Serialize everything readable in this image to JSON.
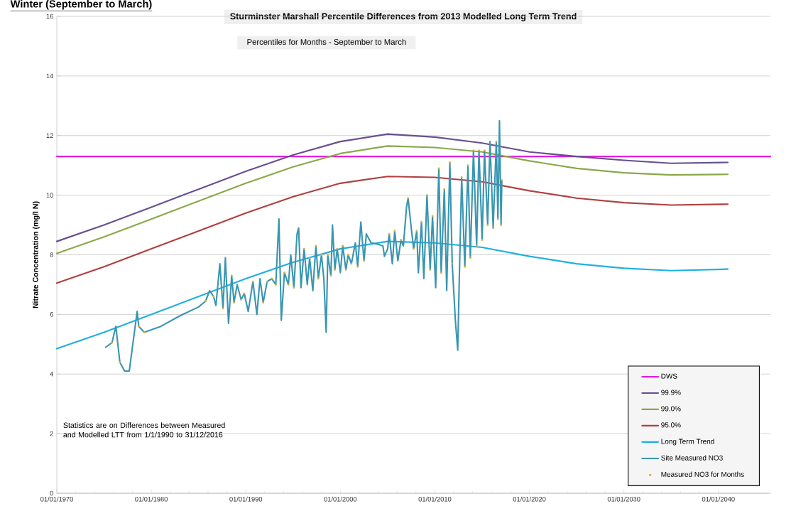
{
  "chart_data": {
    "type": "line",
    "title": "Sturminster Marshall      Percentile Differences from 2013 Modelled Long Term Trend",
    "subtitle": "Percentiles for Months   -   September to March",
    "ylabel": "Nitrate Concentration (mg/l N)",
    "annotations": [
      "Winter (September to March)",
      "Statistics are on Differences between Measured and Modelled LTT from 1/1/1990 to 31/12/2016"
    ],
    "xlim": [
      "1970-01-01",
      "2045-07-01"
    ],
    "ylim": [
      0,
      16
    ],
    "xticks": [
      {
        "value": "1970-01-01",
        "label": "01/01/1970"
      },
      {
        "value": "1980-01-01",
        "label": "01/01/1980"
      },
      {
        "value": "1990-01-01",
        "label": "01/01/1990"
      },
      {
        "value": "2000-01-01",
        "label": "01/01/2000"
      },
      {
        "value": "2010-01-01",
        "label": "01/01/2010"
      },
      {
        "value": "2020-01-01",
        "label": "01/01/2020"
      },
      {
        "value": "2030-01-01",
        "label": "01/01/2030"
      },
      {
        "value": "2040-01-01",
        "label": "01/01/2040"
      }
    ],
    "yticks": [
      0,
      2,
      4,
      6,
      8,
      10,
      12,
      14,
      16
    ],
    "grid": "y",
    "legend": "bottom right",
    "series": [
      {
        "name": "DWS",
        "color": "#e020e0",
        "x": [
          "1970",
          "2045-07"
        ],
        "values": [
          11.3,
          11.3
        ]
      },
      {
        "name": "99.9%",
        "color": "#6a4f8f",
        "x": [
          "1970",
          "1975",
          "1980",
          "1985",
          "1990",
          "1995",
          "2000",
          "2005",
          "2010",
          "2015",
          "2020",
          "2025",
          "2030",
          "2035",
          "2041"
        ],
        "values": [
          8.45,
          9.0,
          9.6,
          10.2,
          10.8,
          11.35,
          11.8,
          12.05,
          11.95,
          11.75,
          11.45,
          11.3,
          11.17,
          11.07,
          11.1
        ]
      },
      {
        "name": "99.0%",
        "color": "#8aa84a",
        "x": [
          "1970",
          "1975",
          "1980",
          "1985",
          "1990",
          "1995",
          "2000",
          "2005",
          "2010",
          "2015",
          "2020",
          "2025",
          "2030",
          "2035",
          "2041"
        ],
        "values": [
          8.05,
          8.6,
          9.2,
          9.8,
          10.4,
          10.95,
          11.4,
          11.65,
          11.6,
          11.45,
          11.15,
          10.9,
          10.75,
          10.68,
          10.7
        ]
      },
      {
        "name": "95.0%",
        "color": "#b04040",
        "x": [
          "1970",
          "1975",
          "1980",
          "1985",
          "1990",
          "1995",
          "2000",
          "2005",
          "2010",
          "2015",
          "2020",
          "2025",
          "2030",
          "2035",
          "2041"
        ],
        "values": [
          7.05,
          7.6,
          8.2,
          8.8,
          9.4,
          9.95,
          10.4,
          10.63,
          10.6,
          10.45,
          10.15,
          9.9,
          9.75,
          9.67,
          9.7
        ]
      },
      {
        "name": "Long Term Trend",
        "color": "#1fb0e0",
        "x": [
          "1970",
          "1975",
          "1980",
          "1985",
          "1990",
          "1995",
          "2000",
          "2005",
          "2010",
          "2015",
          "2020",
          "2025",
          "2030",
          "2035",
          "2041"
        ],
        "values": [
          4.85,
          5.4,
          6.0,
          6.6,
          7.2,
          7.75,
          8.2,
          8.45,
          8.4,
          8.25,
          7.95,
          7.7,
          7.55,
          7.47,
          7.52
        ]
      },
      {
        "name": "Site Measured NO3",
        "color": "#3a96b0",
        "x": [
          "1975-03",
          "1975-11",
          "1976-04",
          "1976-09",
          "1977-03",
          "1977-09",
          "1978-03",
          "1978-07",
          "1978-09",
          "1979-04",
          "1981-01",
          "1983-01",
          "1985-01",
          "1985-10",
          "1986-03",
          "1986-08",
          "1986-11",
          "1987-04",
          "1987-08",
          "1987-11",
          "1988-03",
          "1988-07",
          "1988-10",
          "1989-02",
          "1989-07",
          "1989-11",
          "1990-04",
          "1990-10",
          "1991-03",
          "1991-07",
          "1991-11",
          "1992-04",
          "1992-10",
          "1993-03",
          "1993-07",
          "1993-10",
          "1994-02",
          "1994-07",
          "1994-10",
          "1995-02",
          "1995-06",
          "1995-08",
          "1995-11",
          "1996-03",
          "1996-07",
          "1996-10",
          "1997-02",
          "1997-06",
          "1997-09",
          "1998-01",
          "1998-04",
          "1998-07",
          "1998-09",
          "1999-01",
          "1999-03",
          "1999-06",
          "1999-09",
          "2000-01",
          "2000-04",
          "2000-08",
          "2000-11",
          "2001-03",
          "2001-08",
          "2001-11",
          "2002-03",
          "2002-07",
          "2002-10",
          "2003-04",
          "2004-01",
          "2004-07",
          "2004-09",
          "2005-01",
          "2005-03",
          "2005-07",
          "2005-10",
          "2006-02",
          "2006-06",
          "2006-09",
          "2007-01",
          "2007-03",
          "2007-07",
          "2007-10",
          "2008-02",
          "2008-04",
          "2008-08",
          "2008-11",
          "2009-03",
          "2009-07",
          "2009-10",
          "2010-02",
          "2010-06",
          "2010-09",
          "2011-01",
          "2011-04",
          "2011-08",
          "2011-11",
          "2012-03",
          "2012-06",
          "2012-08",
          "2012-11",
          "2013-03",
          "2013-07",
          "2013-10",
          "2014-02",
          "2014-06",
          "2014-09",
          "2015-01",
          "2015-04",
          "2015-08",
          "2015-11",
          "2016-03",
          "2016-07",
          "2016-09",
          "2016-11",
          "2017-01",
          "2017-02"
        ],
        "values": [
          4.9,
          5.05,
          5.6,
          4.4,
          4.1,
          4.1,
          5.3,
          6.1,
          5.6,
          5.4,
          5.6,
          5.95,
          6.25,
          6.45,
          6.8,
          6.6,
          6.3,
          7.7,
          6.2,
          7.9,
          5.7,
          7.3,
          6.4,
          7.0,
          6.5,
          6.7,
          6.1,
          7.1,
          6.0,
          7.2,
          6.4,
          7.1,
          7.2,
          7.0,
          9.2,
          5.8,
          7.4,
          7.0,
          8.0,
          6.9,
          8.7,
          8.9,
          6.9,
          8.2,
          7.0,
          7.9,
          6.8,
          8.3,
          7.2,
          8.0,
          7.2,
          5.4,
          8.0,
          7.3,
          9.0,
          7.5,
          8.2,
          7.4,
          8.3,
          7.5,
          8.0,
          7.7,
          8.4,
          7.6,
          9.1,
          7.8,
          8.7,
          8.4,
          8.35,
          8.3,
          7.95,
          8.2,
          8.7,
          7.7,
          8.8,
          7.8,
          8.5,
          8.3,
          9.6,
          9.9,
          8.9,
          8.2,
          8.8,
          7.4,
          9.1,
          7.2,
          10.0,
          7.5,
          9.3,
          6.9,
          10.9,
          7.4,
          10.2,
          6.8,
          11.1,
          7.7,
          5.8,
          4.8,
          7.2,
          10.6,
          7.6,
          11.0,
          7.9,
          11.5,
          8.3,
          11.5,
          8.5,
          11.5,
          9.0,
          11.8,
          8.9,
          11.8,
          9.2,
          12.5,
          9.0,
          10.5
        ]
      },
      {
        "name": "Measured NO3 for Months",
        "type": "scatter",
        "marker": "circle",
        "color": "#e0b040",
        "x": [
          "1975-11",
          "1976-09",
          "1978-09",
          "1979-04",
          "1985-10",
          "1986-08",
          "1987-08",
          "1988-07",
          "1988-10",
          "1989-07",
          "1989-11",
          "1990-10",
          "1991-11",
          "1992-04",
          "1992-10",
          "1993-03",
          "1994-02",
          "1994-07",
          "1995-02",
          "1996-03",
          "1996-10",
          "1997-06",
          "1997-09",
          "1998-01",
          "1998-09",
          "1999-01",
          "1999-06",
          "1999-09",
          "2000-04",
          "2000-08",
          "2000-11",
          "2001-03",
          "2001-11",
          "2002-07",
          "2005-03",
          "2005-10",
          "2006-06",
          "2007-03",
          "2007-10",
          "2008-02",
          "2008-08",
          "2009-03",
          "2009-07",
          "2009-10",
          "2010-06",
          "2010-09",
          "2011-01",
          "2011-08",
          "2011-11",
          "2012-11",
          "2013-03",
          "2013-07",
          "2013-10",
          "2014-02",
          "2014-06",
          "2014-09",
          "2015-01",
          "2015-04",
          "2015-08",
          "2016-03",
          "2016-07",
          "2016-09",
          "2017-01",
          "2017-02"
        ],
        "values": [
          5.05,
          4.4,
          5.6,
          5.4,
          6.45,
          6.6,
          6.2,
          7.3,
          6.4,
          6.5,
          6.7,
          7.1,
          6.4,
          7.1,
          7.2,
          7.0,
          7.4,
          7.0,
          6.9,
          8.2,
          7.9,
          8.3,
          7.2,
          8.0,
          8.0,
          7.3,
          7.5,
          8.2,
          8.3,
          7.5,
          8.0,
          7.7,
          7.6,
          7.8,
          8.7,
          8.8,
          8.5,
          9.9,
          8.2,
          8.8,
          9.1,
          10.0,
          7.5,
          9.3,
          10.9,
          7.4,
          10.2,
          11.1,
          7.7,
          10.6,
          7.6,
          11.0,
          7.9,
          11.5,
          8.3,
          11.5,
          8.5,
          11.5,
          9.0,
          8.9,
          11.8,
          9.2,
          9.0,
          10.5
        ]
      }
    ]
  }
}
